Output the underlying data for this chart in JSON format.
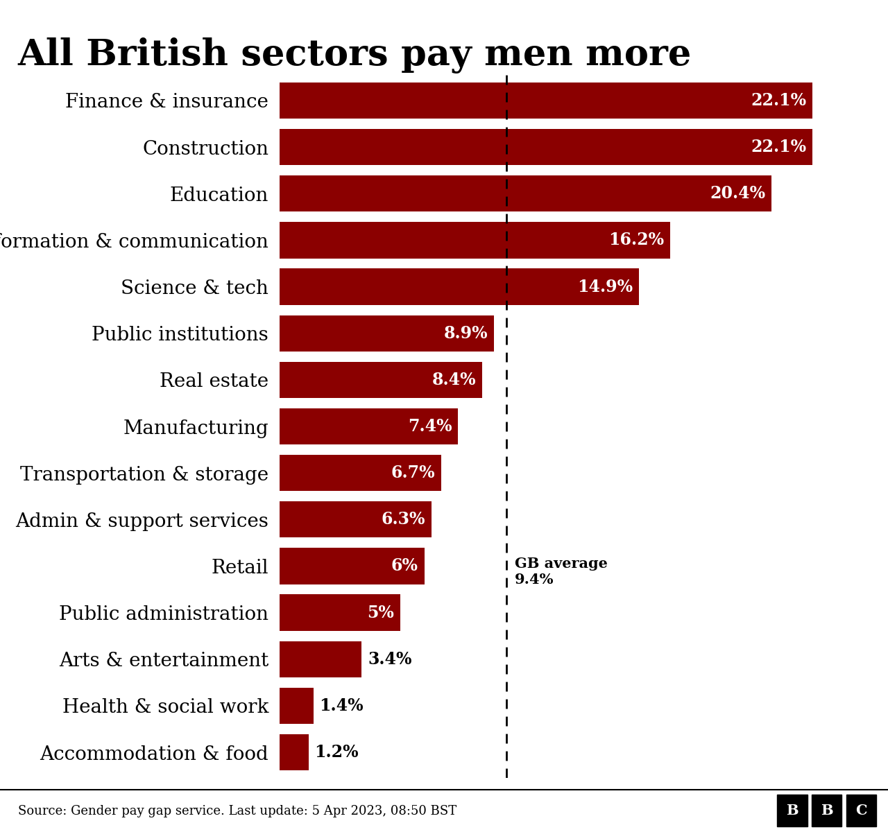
{
  "title": "All British sectors pay men more",
  "categories": [
    "Finance & insurance",
    "Construction",
    "Education",
    "Information & communication",
    "Science & tech",
    "Public institutions",
    "Real estate",
    "Manufacturing",
    "Transportation & storage",
    "Admin & support services",
    "Retail",
    "Public administration",
    "Arts & entertainment",
    "Health & social work",
    "Accommodation & food"
  ],
  "values": [
    22.1,
    22.1,
    20.4,
    16.2,
    14.9,
    8.9,
    8.4,
    7.4,
    6.7,
    6.3,
    6.0,
    5.0,
    3.4,
    1.4,
    1.2
  ],
  "labels": [
    "22.1%",
    "22.1%",
    "20.4%",
    "16.2%",
    "14.9%",
    "8.9%",
    "8.4%",
    "7.4%",
    "6.7%",
    "6.3%",
    "6%",
    "5%",
    "3.4%",
    "1.4%",
    "1.2%"
  ],
  "bar_color": "#8B0000",
  "average_line": 9.4,
  "average_label": "GB average\n9.4%",
  "source_text": "Source: Gender pay gap service. Last update: 5 Apr 2023, 08:50 BST",
  "background_color": "#ffffff",
  "title_fontsize": 38,
  "label_fontsize": 17,
  "tick_fontsize": 20,
  "xlim": [
    0,
    24.5
  ],
  "inside_threshold": 4.0
}
